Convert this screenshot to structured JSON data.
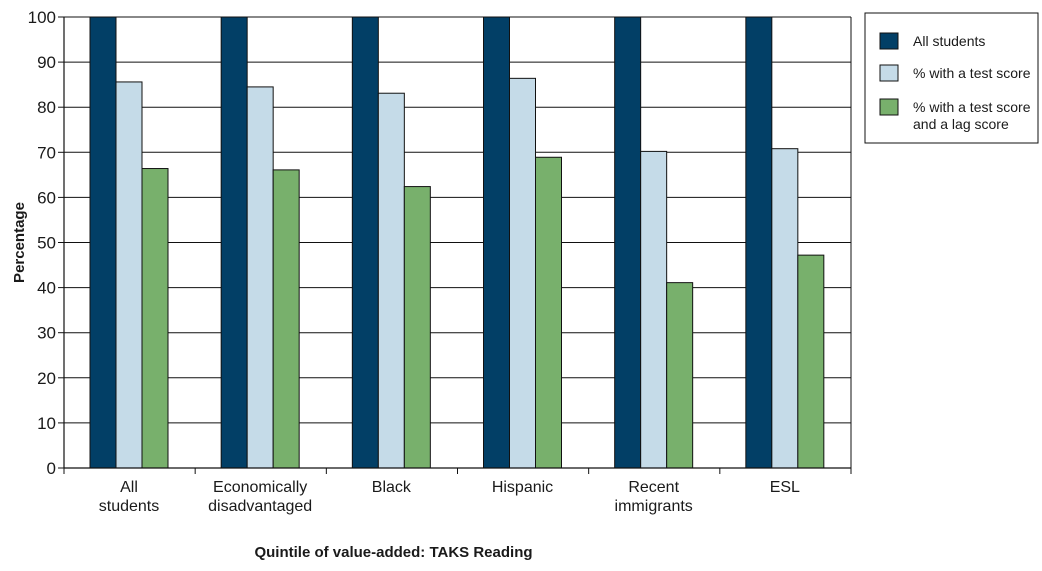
{
  "chart_data": {
    "type": "bar",
    "title": "",
    "xlabel": "Quintile of value-added: TAKS Reading",
    "ylabel": "Percentage",
    "ylim": [
      0,
      100
    ],
    "yticks": [
      0,
      10,
      20,
      30,
      40,
      50,
      60,
      70,
      80,
      90,
      100
    ],
    "grid": true,
    "legend_position": "top-right",
    "categories": [
      [
        "All",
        "students"
      ],
      [
        "Economically",
        "disadvantaged"
      ],
      [
        "Black"
      ],
      [
        "Hispanic"
      ],
      [
        "Recent",
        "immigrants"
      ],
      [
        "ESL"
      ]
    ],
    "series": [
      {
        "name": "All students",
        "color": "#023f66",
        "values": [
          100,
          100,
          100,
          100,
          100,
          100
        ]
      },
      {
        "name": "% with a test score",
        "color": "#c5dbe8",
        "values": [
          85.6,
          84.5,
          83.1,
          86.4,
          70.2,
          70.8
        ]
      },
      {
        "name": [
          "% with a test score",
          "and a lag score"
        ],
        "color": "#78b06c",
        "values": [
          66.4,
          66.1,
          62.4,
          68.9,
          41.1,
          47.2
        ]
      }
    ]
  }
}
